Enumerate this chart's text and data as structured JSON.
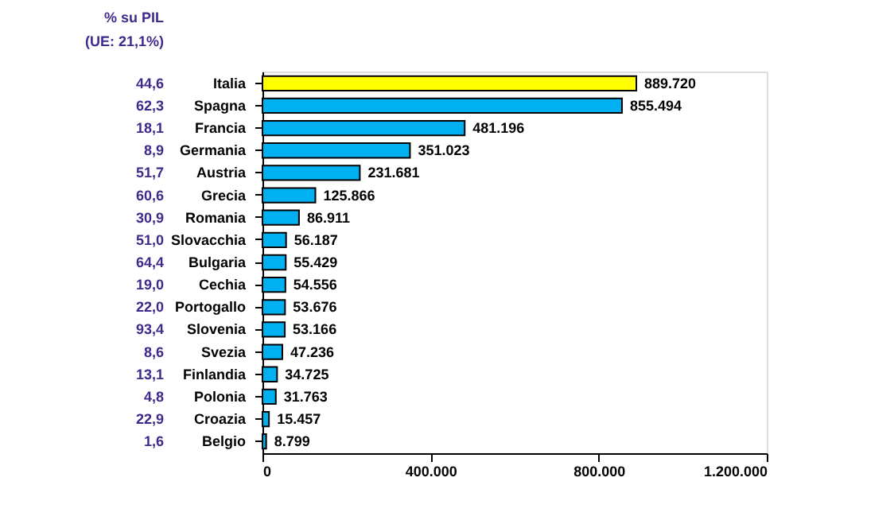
{
  "chart_data": {
    "type": "bar",
    "orientation": "horizontal",
    "title": "% su PIL",
    "subtitle": "(UE: 21,1%)",
    "categories": [
      "Italia",
      "Spagna",
      "Francia",
      "Germania",
      "Austria",
      "Grecia",
      "Romania",
      "Slovacchia",
      "Bulgaria",
      "Cechia",
      "Portogallo",
      "Slovenia",
      "Svezia",
      "Finlandia",
      "Polonia",
      "Croazia",
      "Belgio"
    ],
    "values": [
      889720,
      855494,
      481196,
      351023,
      231681,
      125866,
      86911,
      56187,
      55429,
      54556,
      53676,
      53166,
      47236,
      34725,
      31763,
      15457,
      8799
    ],
    "colors": [
      "#ffff00",
      "#00b0f0",
      "#00b0f0",
      "#00b0f0",
      "#00b0f0",
      "#00b0f0",
      "#00b0f0",
      "#00b0f0",
      "#00b0f0",
      "#00b0f0",
      "#00b0f0",
      "#00b0f0",
      "#00b0f0",
      "#00b0f0",
      "#00b0f0",
      "#00b0f0",
      "#00b0f0"
    ],
    "value_labels": [
      "889.720",
      "855.494",
      "481.196",
      "351.023",
      "231.681",
      "125.866",
      "86.911",
      "56.187",
      "55.429",
      "54.556",
      "53.676",
      "53.166",
      "47.236",
      "34.725",
      "31.763",
      "15.457",
      "8.799"
    ],
    "annotations": [
      "44,6",
      "62,3",
      "18,1",
      "8,9",
      "51,7",
      "60,6",
      "30,9",
      "51,0",
      "64,4",
      "19,0",
      "22,0",
      "93,4",
      "8,6",
      "13,1",
      "4,8",
      "22,9",
      "1,6"
    ],
    "xlim": [
      0,
      1200000
    ],
    "xticks": [
      0,
      {
        "value": 400000,
        "label": "400.000"
      },
      {
        "value": 800000,
        "label": "800.000"
      },
      {
        "value": 1200000,
        "label": "1.200.000"
      }
    ],
    "grid": false
  }
}
